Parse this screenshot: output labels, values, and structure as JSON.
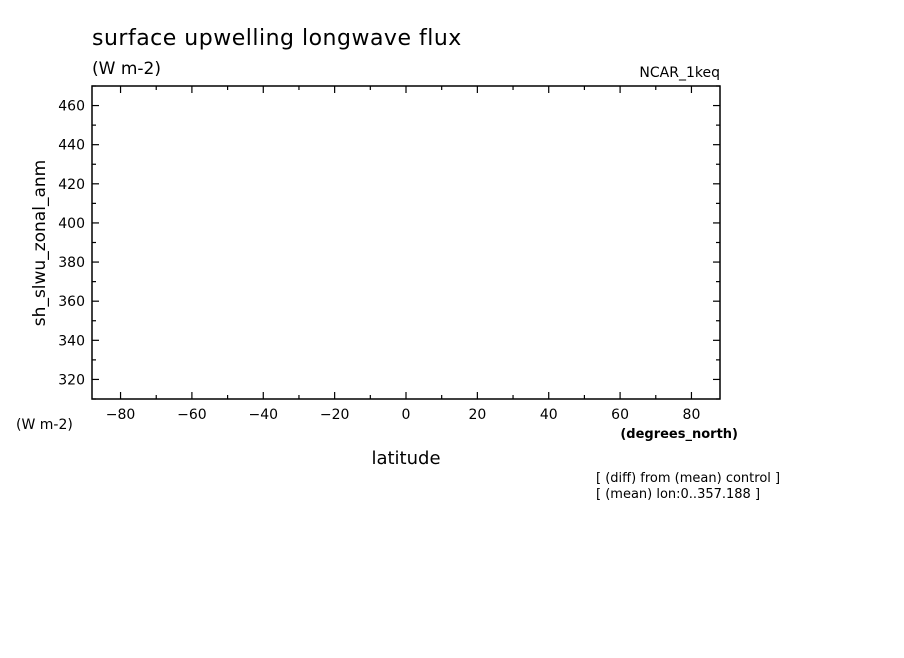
{
  "chart_data": {
    "type": "line",
    "title": "surface upwelling longwave flux",
    "subtitle": "(W m-2)",
    "dataset_label": "NCAR_1keq",
    "ylabel": "sh_slwu_zonal_anm",
    "yunits": "(W m-2)",
    "xlabel": "latitude",
    "xunits": "(degrees_north)",
    "xlim": [
      -88,
      88
    ],
    "ylim": [
      310,
      470
    ],
    "xticks": [
      -80,
      -60,
      -40,
      -20,
      0,
      20,
      40,
      60,
      80
    ],
    "yticks": [
      320,
      340,
      360,
      380,
      400,
      420,
      440,
      460
    ],
    "series": [],
    "notes": [
      "[ (diff) from (mean) control ]",
      "[ (mean) lon:0..357.188 ]"
    ],
    "grid": false,
    "legend": "none"
  }
}
